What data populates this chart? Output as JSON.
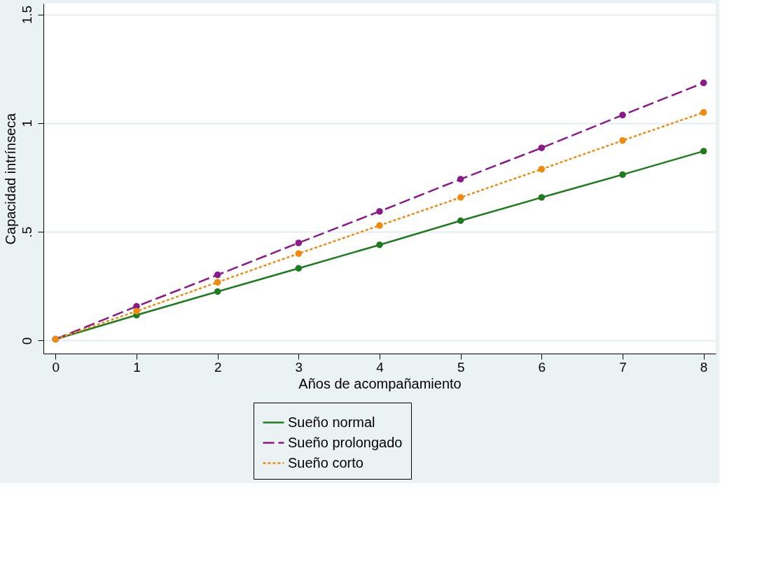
{
  "chart_data": {
    "type": "line",
    "xlabel": "Años de acompañamiento",
    "ylabel": "Capacidad intrínseca",
    "x": [
      0,
      1,
      2,
      3,
      4,
      5,
      6,
      7,
      8
    ],
    "series": [
      {
        "name": "Sueño normal",
        "color": "#1e7b1e",
        "line_style": "solid",
        "values": [
          0.006,
          0.117,
          0.225,
          0.332,
          0.44,
          0.551,
          0.658,
          0.763,
          0.871
        ]
      },
      {
        "name": "Sueño prolongado",
        "color": "#8b1a89",
        "line_style": "dashed",
        "values": [
          0.006,
          0.157,
          0.302,
          0.449,
          0.594,
          0.742,
          0.886,
          1.037,
          1.185
        ]
      },
      {
        "name": "Sueño corto",
        "color": "#f08a0c",
        "line_style": "dotted",
        "values": [
          0.006,
          0.135,
          0.268,
          0.4,
          0.529,
          0.658,
          0.788,
          0.92,
          1.049
        ]
      }
    ],
    "xlim": [
      -0.15,
      8.15
    ],
    "ylim": [
      -0.06,
      1.55
    ],
    "xticks": [
      0,
      1,
      2,
      3,
      4,
      5,
      6,
      7,
      8
    ],
    "yticks": [
      0,
      {
        "value": 0.5,
        "label": ".5"
      },
      1,
      1.5
    ],
    "grid": "y",
    "legend": "bottom",
    "marker": "circle"
  }
}
